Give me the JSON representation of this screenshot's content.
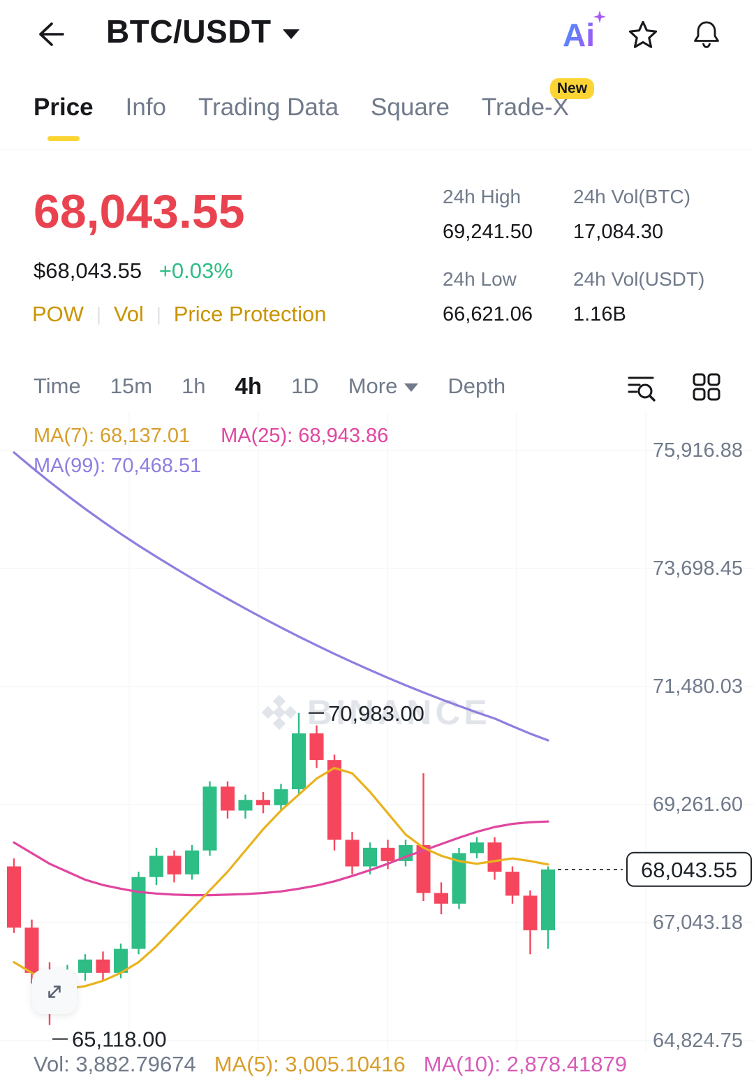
{
  "header": {
    "title": "BTC/USDT",
    "ai_label": "Ai"
  },
  "tabs": [
    {
      "label": "Price",
      "active": true
    },
    {
      "label": "Info",
      "active": false
    },
    {
      "label": "Trading Data",
      "active": false
    },
    {
      "label": "Square",
      "active": false
    },
    {
      "label": "Trade-X",
      "active": false,
      "badge": "New"
    }
  ],
  "price": {
    "last": "68,043.55",
    "last_color": "#E8434F",
    "fiat": "$68,043.55",
    "change": "+0.03%",
    "change_color": "#2EBD85",
    "tags": [
      "POW",
      "Vol",
      "Price Protection"
    ],
    "tags_color": "#C99402"
  },
  "stats": [
    {
      "label": "24h High",
      "value": "69,241.50"
    },
    {
      "label": "24h Vol(BTC)",
      "value": "17,084.30"
    },
    {
      "label": "24h Low",
      "value": "66,621.06"
    },
    {
      "label": "24h Vol(USDT)",
      "value": "1.16B"
    }
  ],
  "toolbar": {
    "items": [
      "Time",
      "15m",
      "1h",
      "4h",
      "1D",
      "More",
      "Depth"
    ],
    "active": "4h"
  },
  "chart_data": {
    "type": "candlestick",
    "interval": "4h",
    "watermark": "BINANCE",
    "legend": [
      {
        "label": "MA(7): 68,137.01",
        "color": "#D89E2C"
      },
      {
        "label": "MA(25): 68,943.86",
        "color": "#E0469F"
      },
      {
        "label": "MA(99): 70,468.51",
        "color": "#8F7EE0"
      }
    ],
    "y_ticks": [
      "75,916.88",
      "73,698.45",
      "71,480.03",
      "69,261.60",
      "67,043.18",
      "64,824.75"
    ],
    "y_tick_values": [
      75916.88,
      73698.45,
      71480.03,
      69261.6,
      67043.18,
      64824.75
    ],
    "v_gridlines": [
      185,
      370,
      555,
      740,
      925
    ],
    "colors": {
      "up": "#2EBD85",
      "down": "#F6465D",
      "grid": "#F2F3F5",
      "watermark": "#DADFE5",
      "ink": "#1E2329"
    },
    "candles": [
      [
        68100,
        68250,
        66850,
        66950
      ],
      [
        66950,
        67100,
        65900,
        66100
      ],
      [
        66100,
        66300,
        65118,
        65600
      ],
      [
        65600,
        66250,
        65400,
        66100
      ],
      [
        66100,
        66450,
        65950,
        66350
      ],
      [
        66350,
        66500,
        65950,
        66100
      ],
      [
        66100,
        66650,
        66000,
        66550
      ],
      [
        66550,
        68000,
        66450,
        67900
      ],
      [
        67900,
        68450,
        67750,
        68300
      ],
      [
        68300,
        68400,
        67800,
        67950
      ],
      [
        67950,
        68500,
        67850,
        68400
      ],
      [
        68400,
        69700,
        68300,
        69600
      ],
      [
        69600,
        69700,
        69000,
        69150
      ],
      [
        69150,
        69450,
        69000,
        69350
      ],
      [
        69350,
        69500,
        69100,
        69250
      ],
      [
        69250,
        69650,
        69150,
        69550
      ],
      [
        69550,
        70983,
        69450,
        70600
      ],
      [
        70600,
        70750,
        69950,
        70100
      ],
      [
        70100,
        70200,
        68400,
        68600
      ],
      [
        68600,
        68750,
        67950,
        68100
      ],
      [
        68100,
        68550,
        67950,
        68450
      ],
      [
        68450,
        68600,
        68050,
        68200
      ],
      [
        68200,
        68600,
        68100,
        68500
      ],
      [
        68500,
        69850,
        67450,
        67600
      ],
      [
        67600,
        67800,
        67200,
        67400
      ],
      [
        67400,
        68450,
        67300,
        68350
      ],
      [
        68350,
        68650,
        68250,
        68550
      ],
      [
        68550,
        68650,
        67850,
        68000
      ],
      [
        68000,
        68100,
        67400,
        67550
      ],
      [
        67550,
        67650,
        66450,
        66900
      ],
      [
        66900,
        68100,
        66550,
        68043.55
      ]
    ],
    "ma": {
      "ma7": {
        "color": "#E8B31E",
        "values": [
          66300,
          66100,
          65900,
          65800,
          65850,
          65950,
          66100,
          66300,
          66600,
          66950,
          67300,
          67650,
          68000,
          68400,
          68800,
          69150,
          69450,
          69750,
          69950,
          69850,
          69500,
          69100,
          68700,
          68450,
          68300,
          68200,
          68150,
          68200,
          68250,
          68200,
          68137.01
        ]
      },
      "ma25": {
        "color": "#E0469F",
        "values": [
          68550,
          68350,
          68150,
          68000,
          67850,
          67750,
          67680,
          67620,
          67590,
          67570,
          67560,
          67560,
          67570,
          67580,
          67600,
          67630,
          67680,
          67740,
          67820,
          67920,
          68030,
          68150,
          68280,
          68400,
          68520,
          68640,
          68750,
          68840,
          68900,
          68930,
          68943.86
        ]
      },
      "ma99": {
        "color": "#8F7EE0",
        "values": [
          75880,
          75600,
          75330,
          75070,
          74820,
          74580,
          74350,
          74130,
          73920,
          73715,
          73515,
          73320,
          73130,
          72945,
          72765,
          72590,
          72420,
          72255,
          72095,
          71940,
          71790,
          71645,
          71505,
          71370,
          71240,
          71115,
          70995,
          70880,
          70735,
          70595,
          70468.51
        ]
      }
    },
    "annotations": {
      "high": "70,983.00",
      "high_value": 70983,
      "high_index": 16,
      "low": "65,118.00",
      "low_value": 65118,
      "low_index": 2,
      "last": "68,043.55",
      "last_value": 68043.55
    }
  },
  "volume": {
    "vol": "Vol: 3,882.79674",
    "vol_color": "#707A8A",
    "ma5": "MA(5): 3,005.10416",
    "ma5_color": "#D89E2C",
    "ma10": "MA(10): 2,878.41879",
    "ma10_color": "#D75CB8"
  }
}
